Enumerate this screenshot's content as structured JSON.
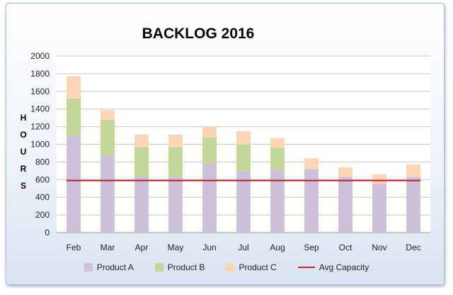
{
  "chart_data": {
    "type": "bar",
    "stacked": true,
    "title": "BACKLOG 2016",
    "ylabel": "HOURS",
    "xlabel": "",
    "categories": [
      "Feb",
      "Mar",
      "Apr",
      "May",
      "Jun",
      "Jul",
      "Aug",
      "Sep",
      "Oct",
      "Nov",
      "Dec"
    ],
    "ylim": [
      0,
      2000
    ],
    "yticks": [
      "0",
      "200",
      "400",
      "600",
      "800",
      "1000",
      "1200",
      "1400",
      "1600",
      "1800",
      "2000"
    ],
    "grid": true,
    "legend_position": "bottom",
    "series": [
      {
        "name": "Product A",
        "color": "#ccc0da",
        "values": [
          1100,
          870,
          630,
          630,
          780,
          700,
          710,
          720,
          630,
          550,
          630
        ]
      },
      {
        "name": "Product B",
        "color": "#c4d79b",
        "values": [
          420,
          410,
          340,
          340,
          300,
          300,
          250,
          0,
          0,
          0,
          0
        ]
      },
      {
        "name": "Product C",
        "color": "#fcd5b4",
        "values": [
          250,
          110,
          140,
          140,
          120,
          150,
          110,
          120,
          110,
          110,
          140
        ]
      }
    ],
    "lines": [
      {
        "name": "Avg Capacity",
        "color": "#c0272d",
        "values": [
          590,
          590,
          590,
          590,
          590,
          590,
          590,
          590,
          590,
          590,
          590
        ]
      }
    ]
  }
}
